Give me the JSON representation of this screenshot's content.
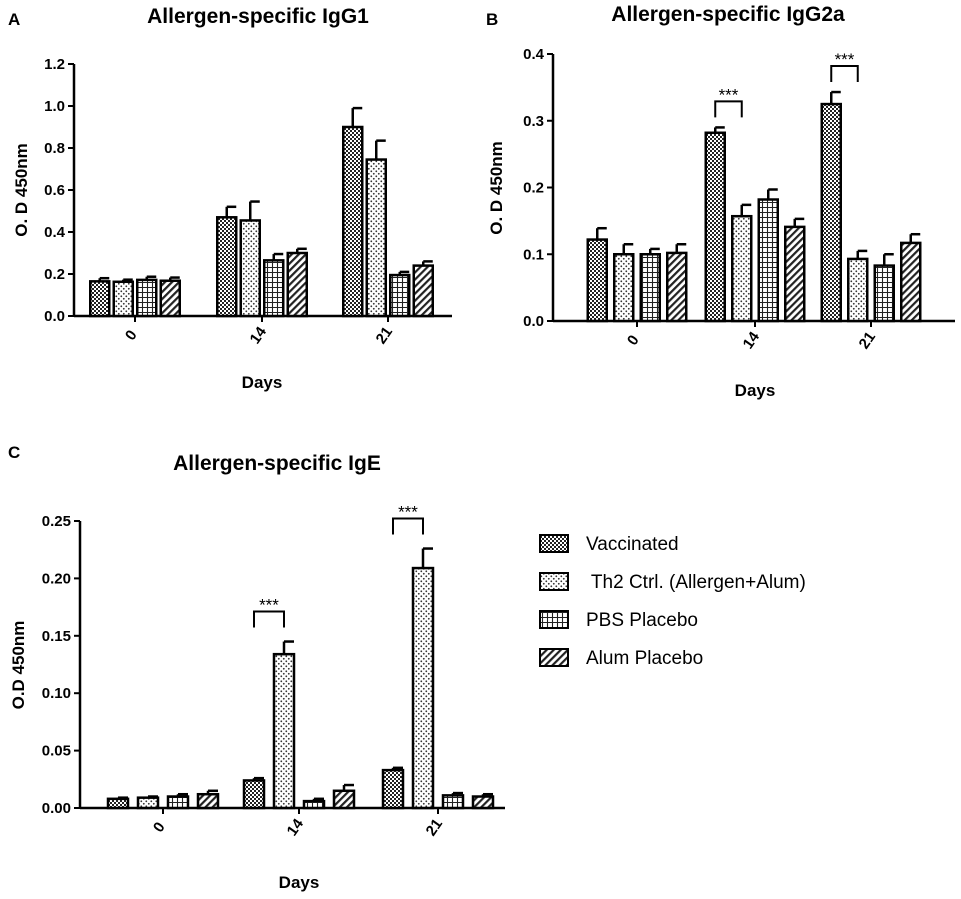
{
  "legend": [
    {
      "name": "Vaccinated",
      "pattern": "checker"
    },
    {
      "name": " Th2 Ctrl. (Allergen+Alum)",
      "pattern": "dots"
    },
    {
      "name": "PBS Placebo",
      "pattern": "grid"
    },
    {
      "name": "Alum Placebo",
      "pattern": "diag"
    }
  ],
  "chart_data": [
    {
      "panel": "A",
      "type": "bar",
      "title": "Allergen-specific IgG1",
      "xlabel": "Days",
      "ylabel": "O. D 450nm",
      "categories": [
        "0",
        "14",
        "21"
      ],
      "ylim": [
        0,
        1.2
      ],
      "yticks": [
        0.0,
        0.2,
        0.4,
        0.6,
        0.8,
        1.0,
        1.2
      ],
      "ytick_labels": [
        "0.0",
        "0.2",
        "0.4",
        "0.6",
        "0.8",
        "1.0",
        "1.2"
      ],
      "series": [
        {
          "name": "Vaccinated",
          "values": [
            0.165,
            0.47,
            0.9
          ],
          "errors": [
            0.015,
            0.05,
            0.09
          ]
        },
        {
          "name": " Th2 Ctrl. (Allergen+Alum)",
          "values": [
            0.163,
            0.455,
            0.745
          ],
          "errors": [
            0.01,
            0.09,
            0.09
          ]
        },
        {
          "name": "PBS Placebo",
          "values": [
            0.172,
            0.265,
            0.195
          ],
          "errors": [
            0.015,
            0.03,
            0.015
          ]
        },
        {
          "name": "Alum Placebo",
          "values": [
            0.168,
            0.3,
            0.24
          ],
          "errors": [
            0.015,
            0.02,
            0.02
          ]
        }
      ],
      "annotations": []
    },
    {
      "panel": "B",
      "type": "bar",
      "title": "Allergen-specific IgG2a",
      "xlabel": "Days",
      "ylabel": "O. D 450nm",
      "categories": [
        "0",
        "14",
        "21"
      ],
      "ylim": [
        0,
        0.4
      ],
      "yticks": [
        0.0,
        0.1,
        0.2,
        0.3,
        0.4
      ],
      "ytick_labels": [
        "0.0",
        "0.1",
        "0.2",
        "0.3",
        "0.4"
      ],
      "series": [
        {
          "name": "Vaccinated",
          "values": [
            0.122,
            0.282,
            0.325
          ],
          "errors": [
            0.017,
            0.008,
            0.018
          ]
        },
        {
          "name": " Th2 Ctrl. (Allergen+Alum)",
          "values": [
            0.1,
            0.157,
            0.093
          ],
          "errors": [
            0.015,
            0.017,
            0.012
          ]
        },
        {
          "name": "PBS Placebo",
          "values": [
            0.1,
            0.182,
            0.083
          ],
          "errors": [
            0.008,
            0.015,
            0.017
          ]
        },
        {
          "name": "Alum Placebo",
          "values": [
            0.102,
            0.141,
            0.117
          ],
          "errors": [
            0.013,
            0.012,
            0.013
          ]
        }
      ],
      "annotations": [
        {
          "group": 1,
          "from_series": 0,
          "to_series": 1,
          "label": "***"
        },
        {
          "group": 2,
          "from_series": 0,
          "to_series": 1,
          "label": "***"
        }
      ]
    },
    {
      "panel": "C",
      "type": "bar",
      "title": "Allergen-specific IgE",
      "xlabel": "Days",
      "ylabel": "O.D 450nm",
      "categories": [
        "0",
        "14",
        "21"
      ],
      "ylim": [
        0,
        0.25
      ],
      "yticks": [
        0.0,
        0.05,
        0.1,
        0.15,
        0.2,
        0.25
      ],
      "ytick_labels": [
        "0.00",
        "0.05",
        "0.10",
        "0.15",
        "0.20",
        "0.25"
      ],
      "series": [
        {
          "name": "Vaccinated",
          "values": [
            0.008,
            0.024,
            0.033
          ],
          "errors": [
            0.001,
            0.002,
            0.002
          ]
        },
        {
          "name": " Th2 Ctrl. (Allergen+Alum)",
          "values": [
            0.009,
            0.134,
            0.209
          ],
          "errors": [
            0.001,
            0.011,
            0.017
          ]
        },
        {
          "name": "PBS Placebo",
          "values": [
            0.01,
            0.006,
            0.011
          ],
          "errors": [
            0.002,
            0.002,
            0.002
          ]
        },
        {
          "name": "Alum Placebo",
          "values": [
            0.012,
            0.015,
            0.01
          ],
          "errors": [
            0.003,
            0.005,
            0.002
          ]
        }
      ],
      "annotations": [
        {
          "group": 1,
          "from_series": 0,
          "to_series": 1,
          "label": "***"
        },
        {
          "group": 2,
          "from_series": 0,
          "to_series": 1,
          "label": "***"
        }
      ]
    }
  ]
}
